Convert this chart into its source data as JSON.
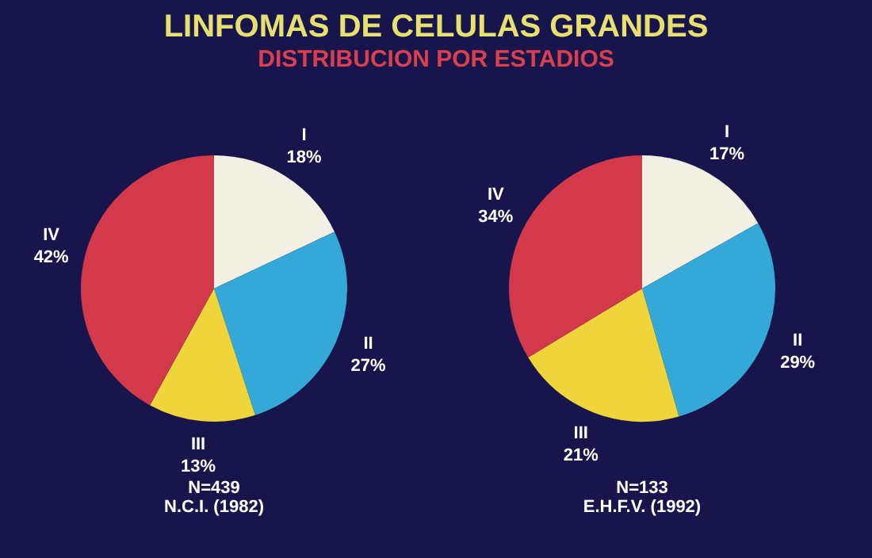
{
  "chart_data": [
    {
      "type": "pie",
      "title": "LINFOMAS DE CELULAS GRANDES",
      "subtitle": "DISTRIBUCION POR ESTADIOS",
      "categories": [
        "I",
        "II",
        "III",
        "IV"
      ],
      "values": [
        18,
        27,
        13,
        42
      ],
      "value_labels": [
        "18%",
        "27%",
        "13%",
        "42%"
      ],
      "colors": [
        "#f2f0e2",
        "#34a8d6",
        "#f0d43c",
        "#d23a4c"
      ],
      "annotations": [
        "N=439",
        "N.C.I. (1982)"
      ]
    },
    {
      "type": "pie",
      "categories": [
        "I",
        "II",
        "III",
        "IV"
      ],
      "values": [
        17,
        29,
        21,
        34
      ],
      "value_labels": [
        "17%",
        "29%",
        "21%",
        "34%"
      ],
      "colors": [
        "#f2f0e2",
        "#34a8d6",
        "#f0d43c",
        "#d23a4c"
      ],
      "annotations": [
        "N=133",
        "E.H.F.V. (1992)"
      ]
    }
  ]
}
